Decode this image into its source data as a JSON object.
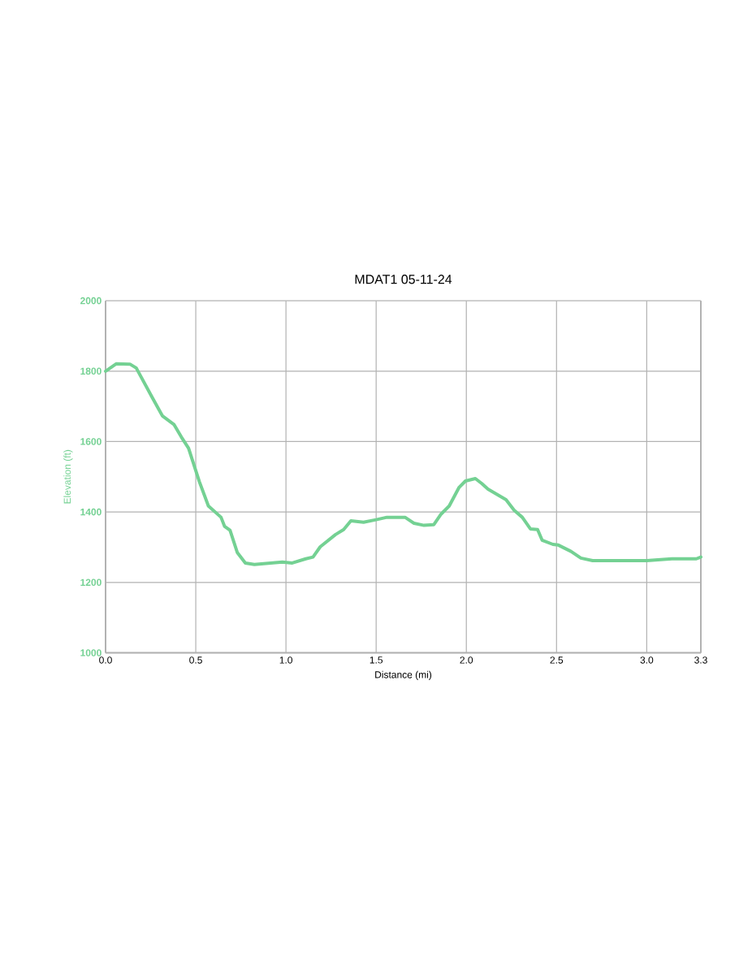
{
  "chart_data": {
    "type": "line",
    "title": "MDAT1 05-11-24",
    "xlabel": "Distance (mi)",
    "ylabel": "Elevation (ft)",
    "x": [
      0,
      0.06,
      0.135,
      0.17,
      0.26,
      0.315,
      0.38,
      0.42,
      0.46,
      0.52,
      0.57,
      0.64,
      0.66,
      0.69,
      0.73,
      0.775,
      0.825,
      0.98,
      1.035,
      1.11,
      1.15,
      1.19,
      1.275,
      1.32,
      1.36,
      1.43,
      1.5,
      1.56,
      1.66,
      1.71,
      1.765,
      1.82,
      1.86,
      1.905,
      1.96,
      1.995,
      2.05,
      2.085,
      2.12,
      2.22,
      2.265,
      2.31,
      2.355,
      2.395,
      2.42,
      2.48,
      2.51,
      2.58,
      2.635,
      2.7,
      2.87,
      3.0,
      3.14,
      3.275,
      3.3
    ],
    "series": [
      {
        "color": "#74d193",
        "values": [
          1800,
          1821,
          1820,
          1809,
          1724,
          1673,
          1648,
          1613,
          1581,
          1486,
          1417,
          1385,
          1359,
          1348,
          1285,
          1255,
          1251,
          1258,
          1255,
          1267,
          1272,
          1301,
          1336,
          1350,
          1375,
          1371,
          1378,
          1385,
          1385,
          1368,
          1362,
          1364,
          1394,
          1417,
          1470,
          1488,
          1495,
          1481,
          1465,
          1435,
          1405,
          1385,
          1352,
          1350,
          1320,
          1308,
          1306,
          1288,
          1269,
          1262,
          1262,
          1262,
          1267,
          1267,
          1272
        ]
      }
    ],
    "xlim": [
      0,
      3.3
    ],
    "xticks": [
      {
        "value": 0,
        "label": "0.0"
      },
      0.5,
      {
        "value": 1,
        "label": "1.0"
      },
      1.5,
      {
        "value": 2,
        "label": "2.0"
      },
      2.5,
      {
        "value": 3,
        "label": "3.0"
      },
      3.3
    ],
    "ylim": [
      1000,
      2000
    ],
    "yticks": [
      1000,
      1200,
      1400,
      1600,
      1800,
      2000
    ],
    "grid": true,
    "marker": "none",
    "line_style": "solid"
  }
}
